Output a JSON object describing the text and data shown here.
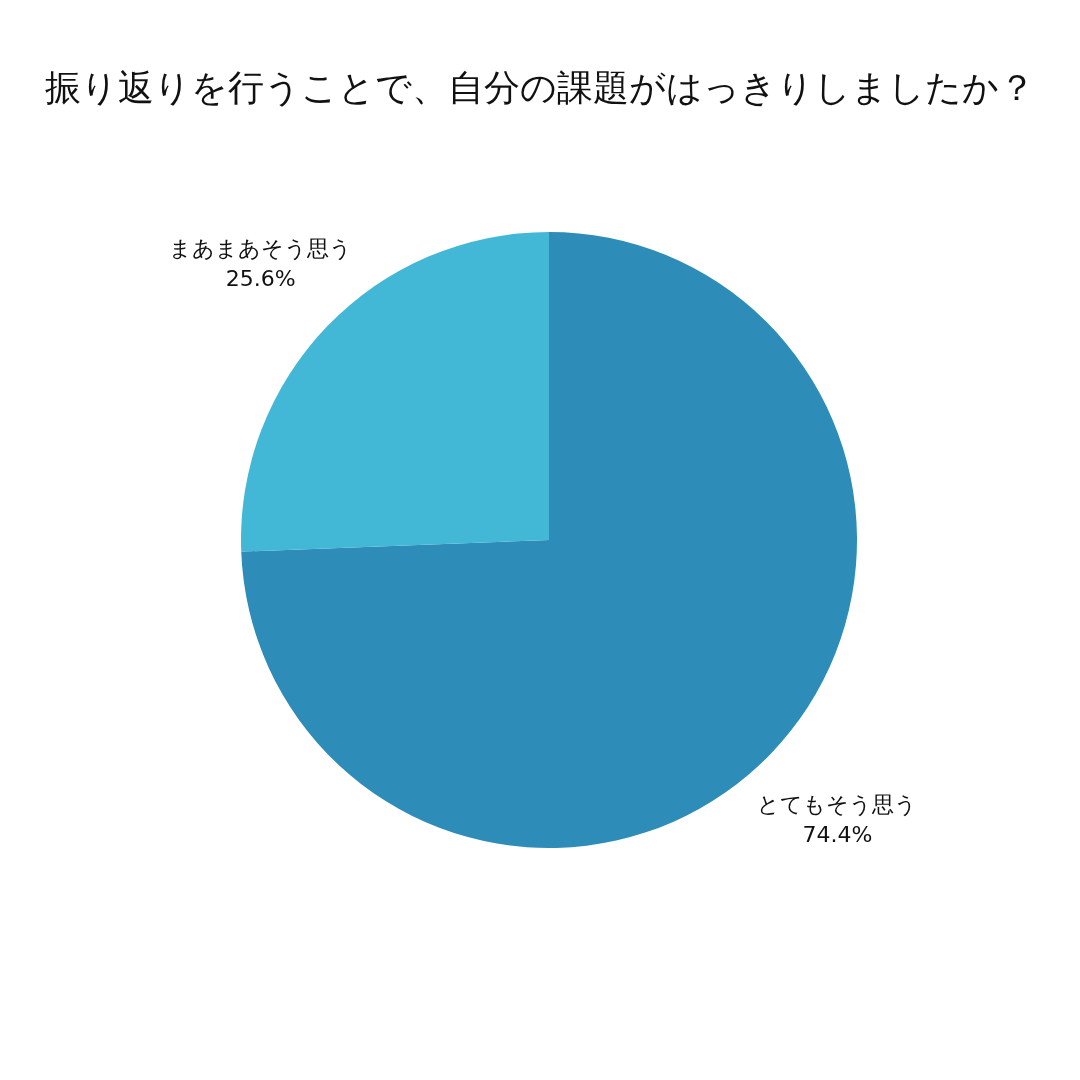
{
  "chart_data": {
    "type": "pie",
    "title": "振り返りを行うことで、自分の課題がはっきりしましたか？",
    "categories": [
      "とてもそう思う",
      "まあまあそう思う"
    ],
    "values": [
      74.4,
      25.6
    ],
    "value_labels": [
      "74.4%",
      "25.6%"
    ],
    "colors": [
      "#2e8cb9",
      "#42b7d6"
    ]
  }
}
